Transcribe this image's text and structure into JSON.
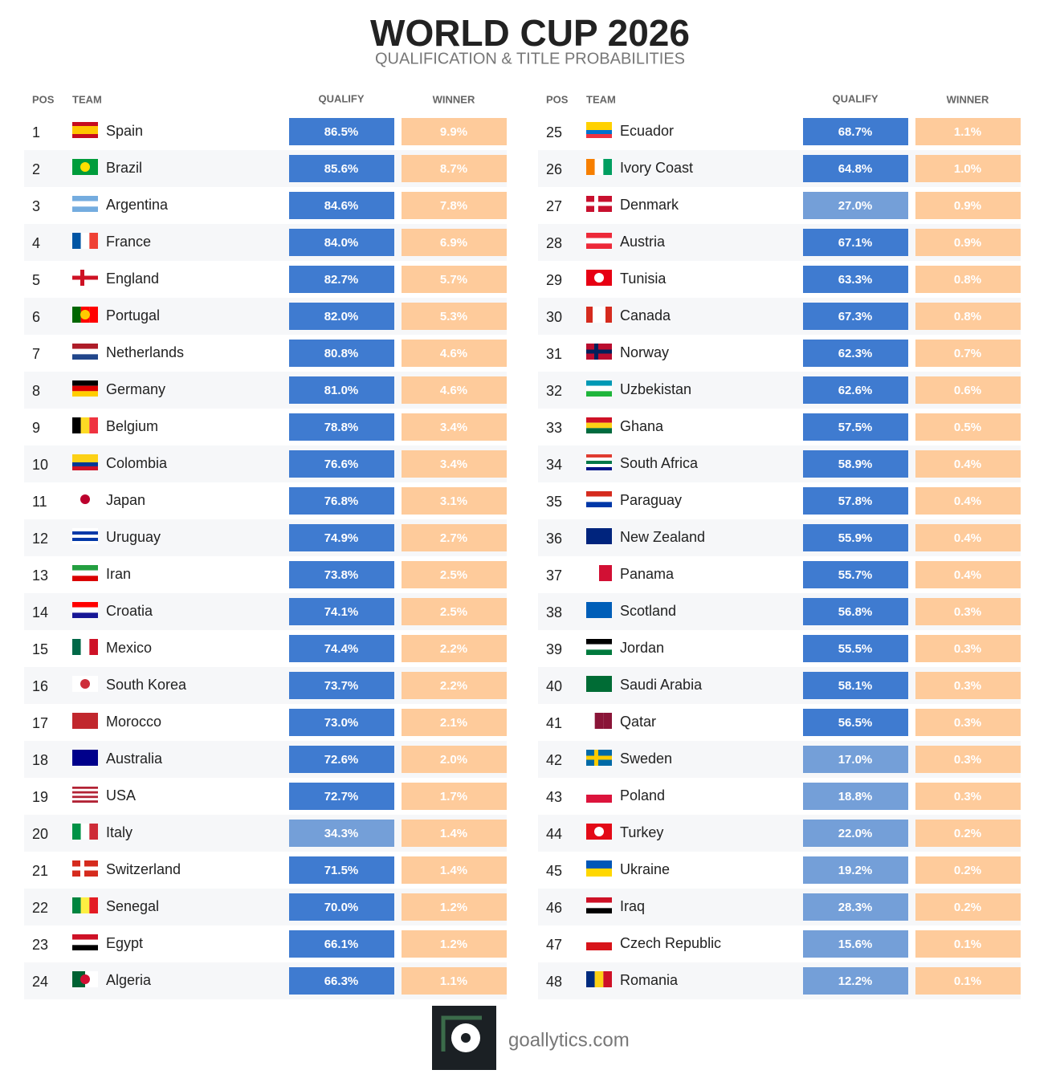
{
  "header": {
    "title": "WORLD CUP 2026",
    "subtitle": "QUALIFICATION & TITLE PROBABILITIES"
  },
  "columns": {
    "pos": "POS",
    "team": "TEAM",
    "qualify": "QUALIFY",
    "winner": "WINNER"
  },
  "colors": {
    "winner": "#fecb9b"
  },
  "teams": [
    {
      "pos": 1,
      "team": "Spain",
      "qualify": "86.5%",
      "winner": "9.9%",
      "qualify_color": "#3f7bd0"
    },
    {
      "pos": 2,
      "team": "Brazil",
      "qualify": "85.6%",
      "winner": "8.7%",
      "qualify_color": "#3f7bd0"
    },
    {
      "pos": 3,
      "team": "Argentina",
      "qualify": "84.6%",
      "winner": "7.8%",
      "qualify_color": "#3f7bd0"
    },
    {
      "pos": 4,
      "team": "France",
      "qualify": "84.0%",
      "winner": "6.9%",
      "qualify_color": "#3f7bd0"
    },
    {
      "pos": 5,
      "team": "England",
      "qualify": "82.7%",
      "winner": "5.7%",
      "qualify_color": "#3f7bd0"
    },
    {
      "pos": 6,
      "team": "Portugal",
      "qualify": "82.0%",
      "winner": "5.3%",
      "qualify_color": "#3f7bd0"
    },
    {
      "pos": 7,
      "team": "Netherlands",
      "qualify": "80.8%",
      "winner": "4.6%",
      "qualify_color": "#3f7bd0"
    },
    {
      "pos": 8,
      "team": "Germany",
      "qualify": "81.0%",
      "winner": "4.6%",
      "qualify_color": "#3f7bd0"
    },
    {
      "pos": 9,
      "team": "Belgium",
      "qualify": "78.8%",
      "winner": "3.4%",
      "qualify_color": "#3f7bd0"
    },
    {
      "pos": 10,
      "team": "Colombia",
      "qualify": "76.6%",
      "winner": "3.4%",
      "qualify_color": "#3f7bd0"
    },
    {
      "pos": 11,
      "team": "Japan",
      "qualify": "76.8%",
      "winner": "3.1%",
      "qualify_color": "#3f7bd0"
    },
    {
      "pos": 12,
      "team": "Uruguay",
      "qualify": "74.9%",
      "winner": "2.7%",
      "qualify_color": "#3f7bd0"
    },
    {
      "pos": 13,
      "team": "Iran",
      "qualify": "73.8%",
      "winner": "2.5%",
      "qualify_color": "#3f7bd0"
    },
    {
      "pos": 14,
      "team": "Croatia",
      "qualify": "74.1%",
      "winner": "2.5%",
      "qualify_color": "#3f7bd0"
    },
    {
      "pos": 15,
      "team": "Mexico",
      "qualify": "74.4%",
      "winner": "2.2%",
      "qualify_color": "#3f7bd0"
    },
    {
      "pos": 16,
      "team": "South Korea",
      "qualify": "73.7%",
      "winner": "2.2%",
      "qualify_color": "#3f7bd0"
    },
    {
      "pos": 17,
      "team": "Morocco",
      "qualify": "73.0%",
      "winner": "2.1%",
      "qualify_color": "#3f7bd0"
    },
    {
      "pos": 18,
      "team": "Australia",
      "qualify": "72.6%",
      "winner": "2.0%",
      "qualify_color": "#3f7bd0"
    },
    {
      "pos": 19,
      "team": "USA",
      "qualify": "72.7%",
      "winner": "1.7%",
      "qualify_color": "#3f7bd0"
    },
    {
      "pos": 20,
      "team": "Italy",
      "qualify": "34.3%",
      "winner": "1.4%",
      "qualify_color": "#749fd8"
    },
    {
      "pos": 21,
      "team": "Switzerland",
      "qualify": "71.5%",
      "winner": "1.4%",
      "qualify_color": "#3f7bd0"
    },
    {
      "pos": 22,
      "team": "Senegal",
      "qualify": "70.0%",
      "winner": "1.2%",
      "qualify_color": "#3f7bd0"
    },
    {
      "pos": 23,
      "team": "Egypt",
      "qualify": "66.1%",
      "winner": "1.2%",
      "qualify_color": "#3f7bd0"
    },
    {
      "pos": 24,
      "team": "Algeria",
      "qualify": "66.3%",
      "winner": "1.1%",
      "qualify_color": "#3f7bd0"
    },
    {
      "pos": 25,
      "team": "Ecuador",
      "qualify": "68.7%",
      "winner": "1.1%",
      "qualify_color": "#3f7bd0"
    },
    {
      "pos": 26,
      "team": "Ivory Coast",
      "qualify": "64.8%",
      "winner": "1.0%",
      "qualify_color": "#3f7bd0"
    },
    {
      "pos": 27,
      "team": "Denmark",
      "qualify": "27.0%",
      "winner": "0.9%",
      "qualify_color": "#749fd8"
    },
    {
      "pos": 28,
      "team": "Austria",
      "qualify": "67.1%",
      "winner": "0.9%",
      "qualify_color": "#3f7bd0"
    },
    {
      "pos": 29,
      "team": "Tunisia",
      "qualify": "63.3%",
      "winner": "0.8%",
      "qualify_color": "#3f7bd0"
    },
    {
      "pos": 30,
      "team": "Canada",
      "qualify": "67.3%",
      "winner": "0.8%",
      "qualify_color": "#3f7bd0"
    },
    {
      "pos": 31,
      "team": "Norway",
      "qualify": "62.3%",
      "winner": "0.7%",
      "qualify_color": "#3f7bd0"
    },
    {
      "pos": 32,
      "team": "Uzbekistan",
      "qualify": "62.6%",
      "winner": "0.6%",
      "qualify_color": "#3f7bd0"
    },
    {
      "pos": 33,
      "team": "Ghana",
      "qualify": "57.5%",
      "winner": "0.5%",
      "qualify_color": "#3f7bd0"
    },
    {
      "pos": 34,
      "team": "South Africa",
      "qualify": "58.9%",
      "winner": "0.4%",
      "qualify_color": "#3f7bd0"
    },
    {
      "pos": 35,
      "team": "Paraguay",
      "qualify": "57.8%",
      "winner": "0.4%",
      "qualify_color": "#3f7bd0"
    },
    {
      "pos": 36,
      "team": "New Zealand",
      "qualify": "55.9%",
      "winner": "0.4%",
      "qualify_color": "#3f7bd0"
    },
    {
      "pos": 37,
      "team": "Panama",
      "qualify": "55.7%",
      "winner": "0.4%",
      "qualify_color": "#3f7bd0"
    },
    {
      "pos": 38,
      "team": "Scotland",
      "qualify": "56.8%",
      "winner": "0.3%",
      "qualify_color": "#3f7bd0"
    },
    {
      "pos": 39,
      "team": "Jordan",
      "qualify": "55.5%",
      "winner": "0.3%",
      "qualify_color": "#3f7bd0"
    },
    {
      "pos": 40,
      "team": "Saudi Arabia",
      "qualify": "58.1%",
      "winner": "0.3%",
      "qualify_color": "#3f7bd0"
    },
    {
      "pos": 41,
      "team": "Qatar",
      "qualify": "56.5%",
      "winner": "0.3%",
      "qualify_color": "#3f7bd0"
    },
    {
      "pos": 42,
      "team": "Sweden",
      "qualify": "17.0%",
      "winner": "0.3%",
      "qualify_color": "#749fd8"
    },
    {
      "pos": 43,
      "team": "Poland",
      "qualify": "18.8%",
      "winner": "0.3%",
      "qualify_color": "#749fd8"
    },
    {
      "pos": 44,
      "team": "Turkey",
      "qualify": "22.0%",
      "winner": "0.2%",
      "qualify_color": "#749fd8"
    },
    {
      "pos": 45,
      "team": "Ukraine",
      "qualify": "19.2%",
      "winner": "0.2%",
      "qualify_color": "#749fd8"
    },
    {
      "pos": 46,
      "team": "Iraq",
      "qualify": "28.3%",
      "winner": "0.2%",
      "qualify_color": "#749fd8"
    },
    {
      "pos": 47,
      "team": "Czech Republic",
      "qualify": "15.6%",
      "winner": "0.1%",
      "qualify_color": "#749fd8"
    },
    {
      "pos": 48,
      "team": "Romania",
      "qualify": "12.2%",
      "winner": "0.1%",
      "qualify_color": "#749fd8"
    }
  ],
  "footer": {
    "site": "goallytics.com"
  }
}
